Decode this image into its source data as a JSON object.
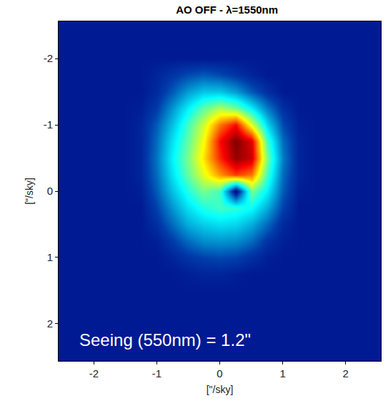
{
  "chart_data": {
    "type": "heatmap",
    "title": "AO OFF - λ=1550nm",
    "xlabel": "[\"/sky]",
    "ylabel": "[\"/sky]",
    "color": "jet",
    "grid": false,
    "xlim": [
      -2.56,
      2.56
    ],
    "ylim": [
      2.56,
      -2.56
    ],
    "xticks": [
      -2,
      -1,
      0,
      1,
      2
    ],
    "yticks": [
      -2,
      -1,
      0,
      1,
      2
    ],
    "annotations": [
      {
        "text": "Seeing (550nm) = 1.2\""
      }
    ],
    "x": [
      -2.5,
      -2.25,
      -2,
      -1.75,
      -1.5,
      -1.25,
      -1,
      -0.75,
      -0.5,
      -0.25,
      0,
      0.25,
      0.5,
      0.75,
      1,
      1.25,
      1.5,
      1.75,
      2,
      2.25,
      2.5
    ],
    "y": [
      -2.5,
      -2.25,
      -2,
      -1.75,
      -1.5,
      -1.25,
      -1,
      -0.75,
      -0.5,
      -0.25,
      0,
      0.25,
      0.5,
      0.75,
      1,
      1.25,
      1.5,
      1.75,
      2,
      2.25,
      2.5
    ],
    "z": [
      [
        0.1,
        0.1,
        0.1,
        0.1,
        0.1,
        0.1,
        0.1,
        0.1,
        0.1,
        0.1,
        0.1,
        0.1,
        0.1,
        0.1,
        0.1,
        0.1,
        0.1,
        0.1,
        0.1,
        0.1,
        0.1
      ],
      [
        0.1,
        0.1,
        0.1,
        0.1,
        0.1,
        0.1,
        0.1,
        0.1,
        0.1,
        0.1,
        0.1,
        0.1,
        0.1,
        0.1,
        0.1,
        0.1,
        0.1,
        0.1,
        0.1,
        0.1,
        0.1
      ],
      [
        0.1,
        0.1,
        0.1,
        0.1,
        0.1,
        0.1,
        0.1,
        0.1,
        0.1,
        0.1,
        0.1,
        0.1,
        0.1,
        0.1,
        0.1,
        0.1,
        0.1,
        0.1,
        0.1,
        0.1,
        0.1
      ],
      [
        0.1,
        0.1,
        0.1,
        0.1,
        0.1,
        0.1,
        0.12,
        0.15,
        0.18,
        0.2,
        0.18,
        0.15,
        0.12,
        0.1,
        0.1,
        0.1,
        0.1,
        0.1,
        0.1,
        0.1,
        0.1
      ],
      [
        0.1,
        0.1,
        0.1,
        0.1,
        0.1,
        0.1,
        0.13,
        0.2,
        0.28,
        0.33,
        0.33,
        0.28,
        0.2,
        0.14,
        0.1,
        0.1,
        0.1,
        0.1,
        0.1,
        0.1,
        0.1
      ],
      [
        0.1,
        0.1,
        0.1,
        0.1,
        0.1,
        0.11,
        0.16,
        0.27,
        0.38,
        0.48,
        0.55,
        0.5,
        0.38,
        0.24,
        0.14,
        0.1,
        0.1,
        0.1,
        0.1,
        0.1,
        0.1
      ],
      [
        0.1,
        0.1,
        0.1,
        0.1,
        0.1,
        0.12,
        0.2,
        0.32,
        0.45,
        0.58,
        0.75,
        0.85,
        0.6,
        0.35,
        0.18,
        0.11,
        0.1,
        0.1,
        0.1,
        0.1,
        0.1
      ],
      [
        0.1,
        0.1,
        0.1,
        0.1,
        0.1,
        0.12,
        0.22,
        0.36,
        0.48,
        0.62,
        0.85,
        0.97,
        0.88,
        0.45,
        0.22,
        0.12,
        0.1,
        0.1,
        0.1,
        0.1,
        0.1
      ],
      [
        0.1,
        0.1,
        0.1,
        0.1,
        0.1,
        0.12,
        0.23,
        0.38,
        0.5,
        0.65,
        0.82,
        0.95,
        0.9,
        0.5,
        0.24,
        0.12,
        0.1,
        0.1,
        0.1,
        0.1,
        0.1
      ],
      [
        0.1,
        0.1,
        0.1,
        0.1,
        0.1,
        0.12,
        0.22,
        0.36,
        0.48,
        0.6,
        0.72,
        0.8,
        0.75,
        0.45,
        0.22,
        0.12,
        0.1,
        0.1,
        0.1,
        0.1,
        0.1
      ],
      [
        0.1,
        0.1,
        0.1,
        0.1,
        0.1,
        0.11,
        0.2,
        0.32,
        0.42,
        0.5,
        0.45,
        0.05,
        0.5,
        0.38,
        0.2,
        0.11,
        0.1,
        0.1,
        0.1,
        0.1,
        0.1
      ],
      [
        0.1,
        0.1,
        0.1,
        0.1,
        0.1,
        0.1,
        0.17,
        0.27,
        0.36,
        0.42,
        0.45,
        0.43,
        0.4,
        0.3,
        0.17,
        0.1,
        0.1,
        0.1,
        0.1,
        0.1,
        0.1
      ],
      [
        0.1,
        0.1,
        0.1,
        0.1,
        0.1,
        0.1,
        0.14,
        0.22,
        0.3,
        0.34,
        0.36,
        0.35,
        0.3,
        0.22,
        0.13,
        0.1,
        0.1,
        0.1,
        0.1,
        0.1,
        0.1
      ],
      [
        0.1,
        0.1,
        0.1,
        0.1,
        0.1,
        0.1,
        0.11,
        0.16,
        0.22,
        0.26,
        0.27,
        0.26,
        0.22,
        0.15,
        0.11,
        0.1,
        0.1,
        0.1,
        0.1,
        0.1,
        0.1
      ],
      [
        0.1,
        0.1,
        0.1,
        0.1,
        0.1,
        0.1,
        0.1,
        0.12,
        0.15,
        0.17,
        0.18,
        0.17,
        0.14,
        0.11,
        0.1,
        0.1,
        0.1,
        0.1,
        0.1,
        0.1,
        0.1
      ],
      [
        0.1,
        0.1,
        0.1,
        0.1,
        0.1,
        0.1,
        0.1,
        0.1,
        0.11,
        0.12,
        0.12,
        0.11,
        0.1,
        0.1,
        0.1,
        0.1,
        0.1,
        0.1,
        0.1,
        0.1,
        0.1
      ],
      [
        0.1,
        0.1,
        0.1,
        0.1,
        0.1,
        0.1,
        0.1,
        0.1,
        0.1,
        0.1,
        0.1,
        0.1,
        0.1,
        0.1,
        0.1,
        0.1,
        0.1,
        0.1,
        0.1,
        0.1,
        0.1
      ],
      [
        0.1,
        0.1,
        0.1,
        0.1,
        0.1,
        0.1,
        0.1,
        0.1,
        0.1,
        0.1,
        0.1,
        0.1,
        0.1,
        0.1,
        0.1,
        0.1,
        0.1,
        0.1,
        0.1,
        0.1,
        0.1
      ],
      [
        0.1,
        0.1,
        0.1,
        0.1,
        0.1,
        0.1,
        0.1,
        0.1,
        0.1,
        0.1,
        0.1,
        0.1,
        0.1,
        0.1,
        0.1,
        0.1,
        0.1,
        0.1,
        0.1,
        0.1,
        0.1
      ],
      [
        0.1,
        0.1,
        0.1,
        0.1,
        0.1,
        0.1,
        0.1,
        0.1,
        0.1,
        0.1,
        0.1,
        0.1,
        0.1,
        0.1,
        0.1,
        0.1,
        0.1,
        0.1,
        0.1,
        0.1,
        0.1
      ],
      [
        0.1,
        0.1,
        0.1,
        0.1,
        0.1,
        0.1,
        0.1,
        0.1,
        0.1,
        0.1,
        0.1,
        0.1,
        0.1,
        0.1,
        0.1,
        0.1,
        0.1,
        0.1,
        0.1,
        0.1,
        0.1
      ]
    ]
  }
}
